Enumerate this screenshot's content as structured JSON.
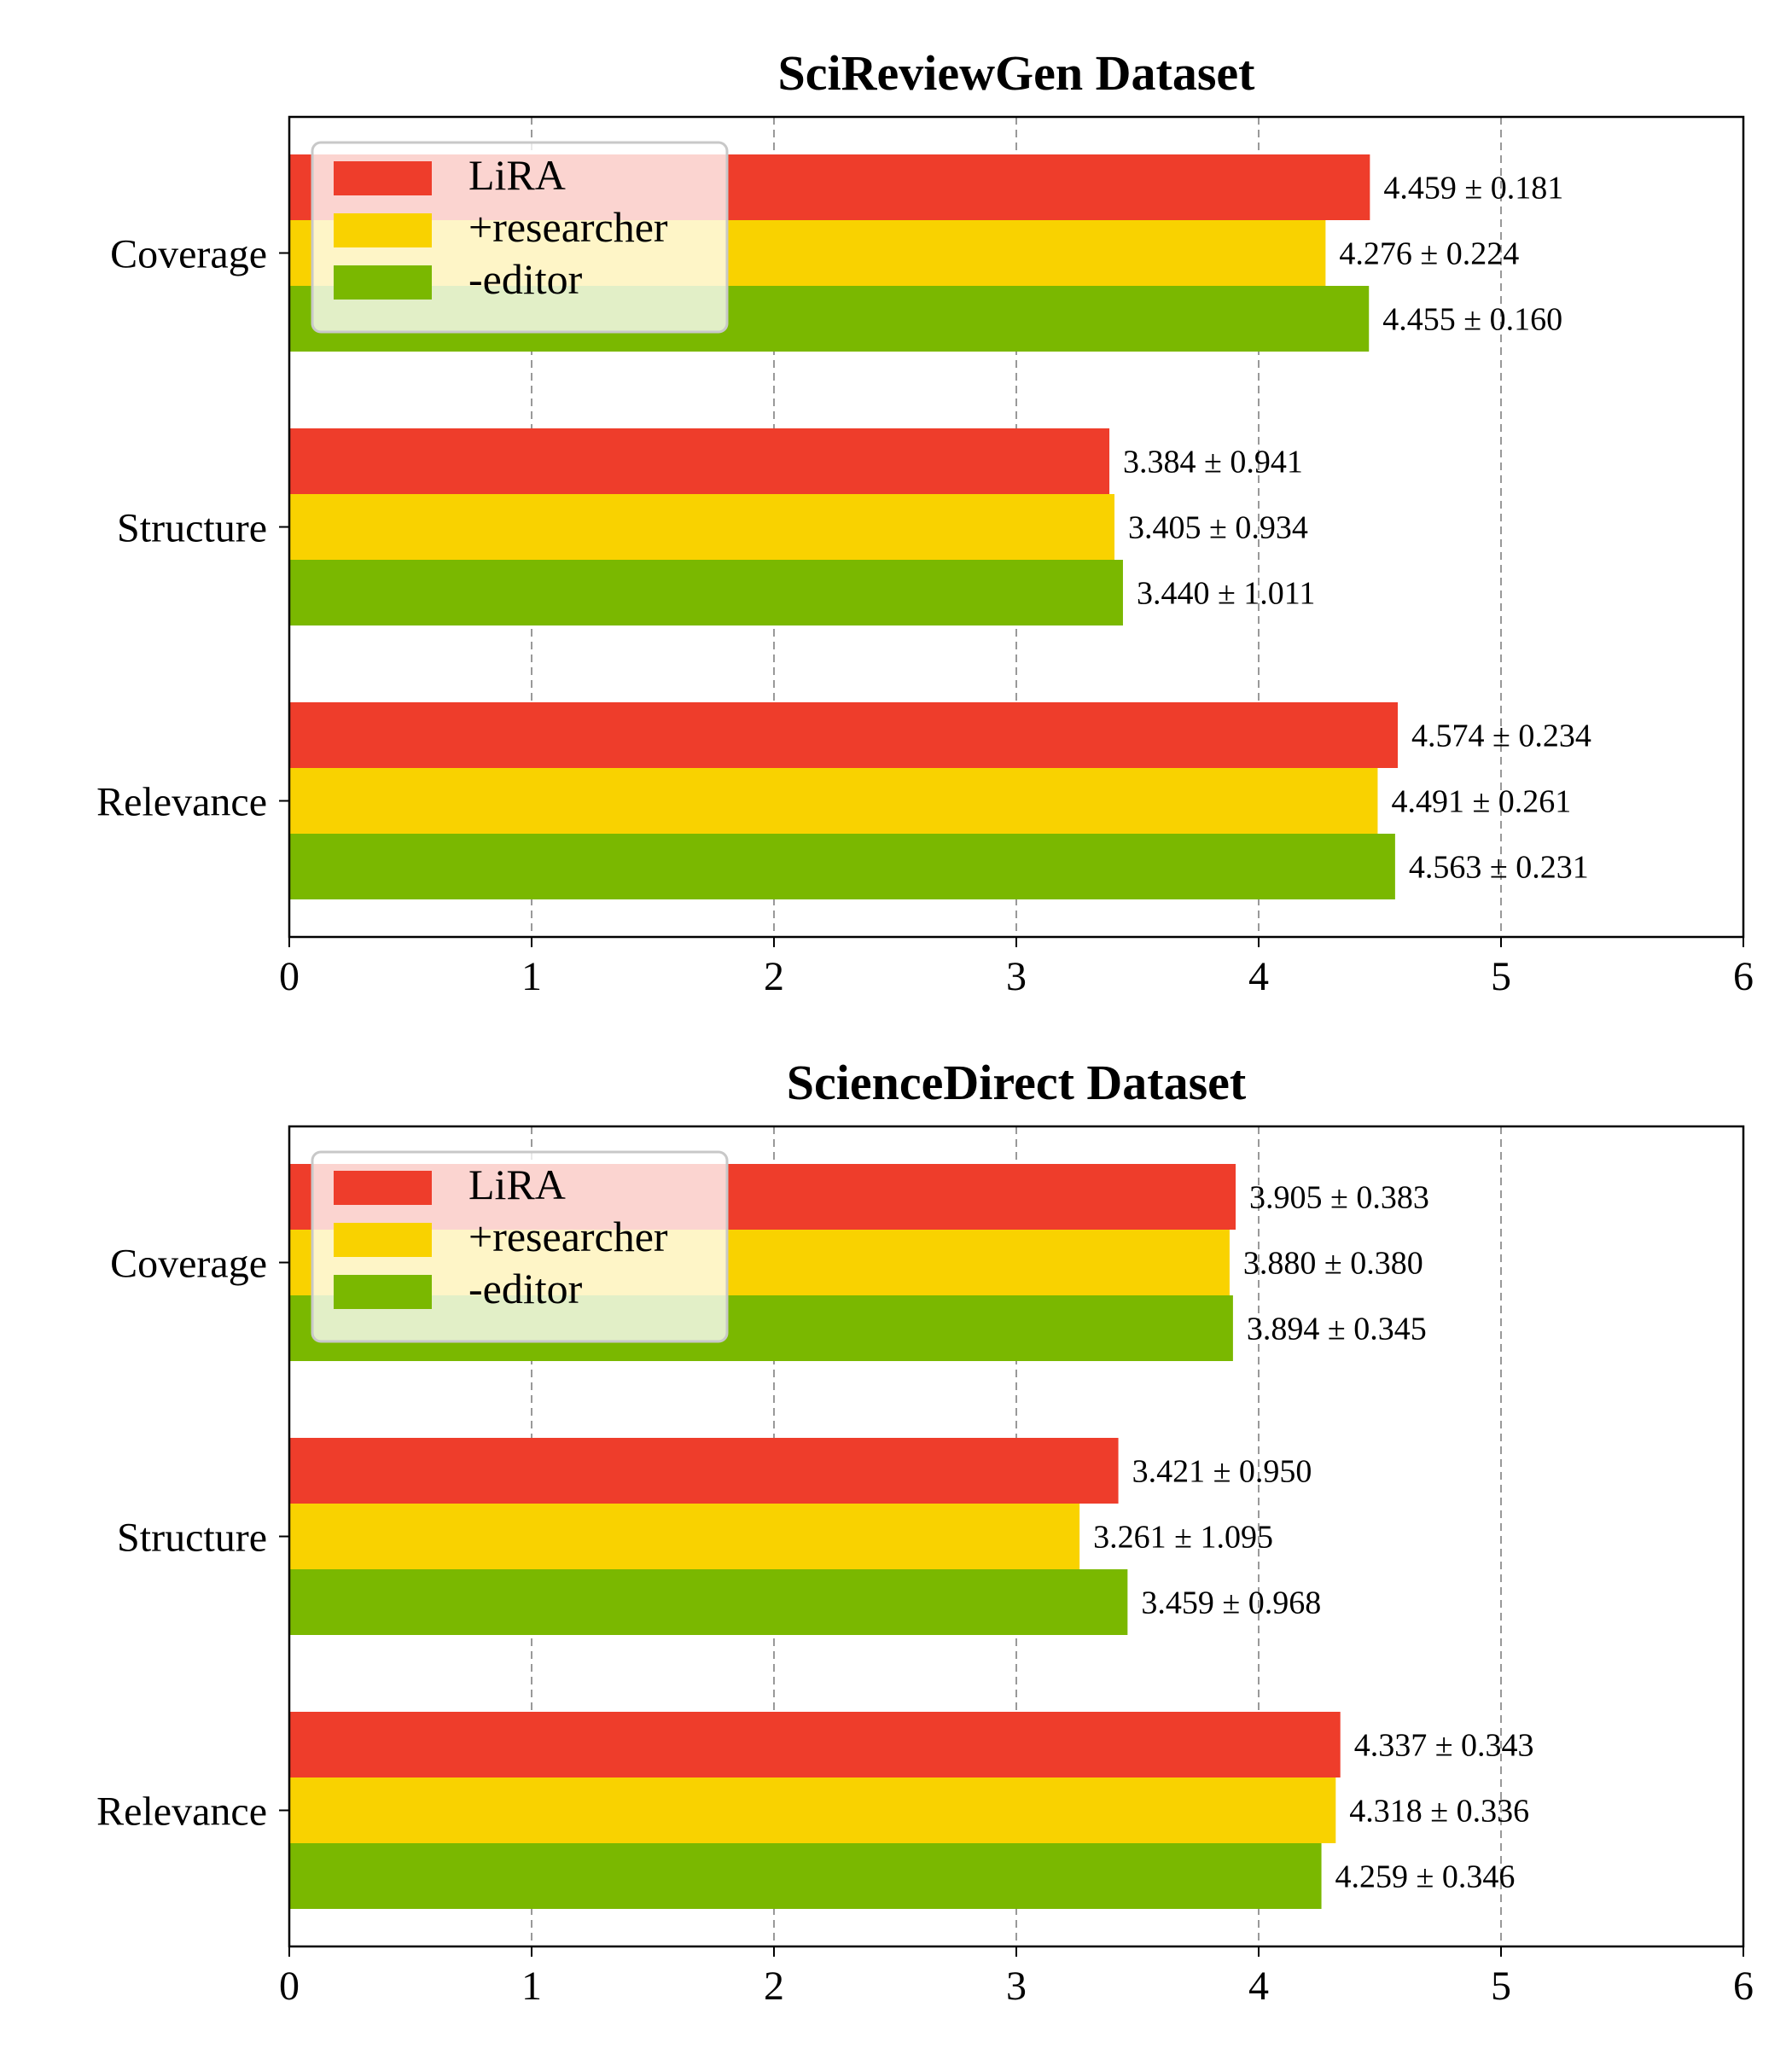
{
  "chart_data": [
    {
      "type": "bar",
      "orientation": "horizontal",
      "title": "SciReviewGen Dataset",
      "xlabel": "",
      "ylabel": "",
      "xlim": [
        0,
        6
      ],
      "xticks": [
        "0",
        "1",
        "2",
        "3",
        "4",
        "5",
        "6"
      ],
      "grid": "x-dashed",
      "legend_position": "upper-left",
      "categories": [
        "Coverage",
        "Structure",
        "Relevance"
      ],
      "series": [
        {
          "name": "LiRA",
          "color": "#ee3d2b",
          "values": [
            4.459,
            3.384,
            4.574
          ],
          "labels": [
            "4.459 ± 0.181",
            "3.384 ± 0.941",
            "4.574 ± 0.234"
          ]
        },
        {
          "name": "+researcher",
          "color": "#f9d200",
          "values": [
            4.276,
            3.405,
            4.491
          ],
          "labels": [
            "4.276 ± 0.224",
            "3.405 ± 0.934",
            "4.491 ± 0.261"
          ]
        },
        {
          "name": "-editor",
          "color": "#7ab800",
          "values": [
            4.455,
            3.44,
            4.563
          ],
          "labels": [
            "4.455 ± 0.160",
            "3.440 ± 1.011",
            "4.563 ± 0.231"
          ]
        }
      ]
    },
    {
      "type": "bar",
      "orientation": "horizontal",
      "title": "ScienceDirect Dataset",
      "xlabel": "",
      "ylabel": "",
      "xlim": [
        0,
        6
      ],
      "xticks": [
        "0",
        "1",
        "2",
        "3",
        "4",
        "5",
        "6"
      ],
      "grid": "x-dashed",
      "legend_position": "upper-left",
      "categories": [
        "Coverage",
        "Structure",
        "Relevance"
      ],
      "series": [
        {
          "name": "LiRA",
          "color": "#ee3d2b",
          "values": [
            3.905,
            3.421,
            4.337
          ],
          "labels": [
            "3.905 ± 0.383",
            "3.421 ± 0.950",
            "4.337 ± 0.343"
          ]
        },
        {
          "name": "+researcher",
          "color": "#f9d200",
          "values": [
            3.88,
            3.261,
            4.318
          ],
          "labels": [
            "3.880 ± 0.380",
            "3.261 ± 1.095",
            "4.318 ± 0.336"
          ]
        },
        {
          "name": "-editor",
          "color": "#7ab800",
          "values": [
            3.894,
            3.459,
            4.259
          ],
          "labels": [
            "3.894 ± 0.345",
            "3.459 ± 0.968",
            "4.259 ± 0.346"
          ]
        }
      ]
    }
  ]
}
